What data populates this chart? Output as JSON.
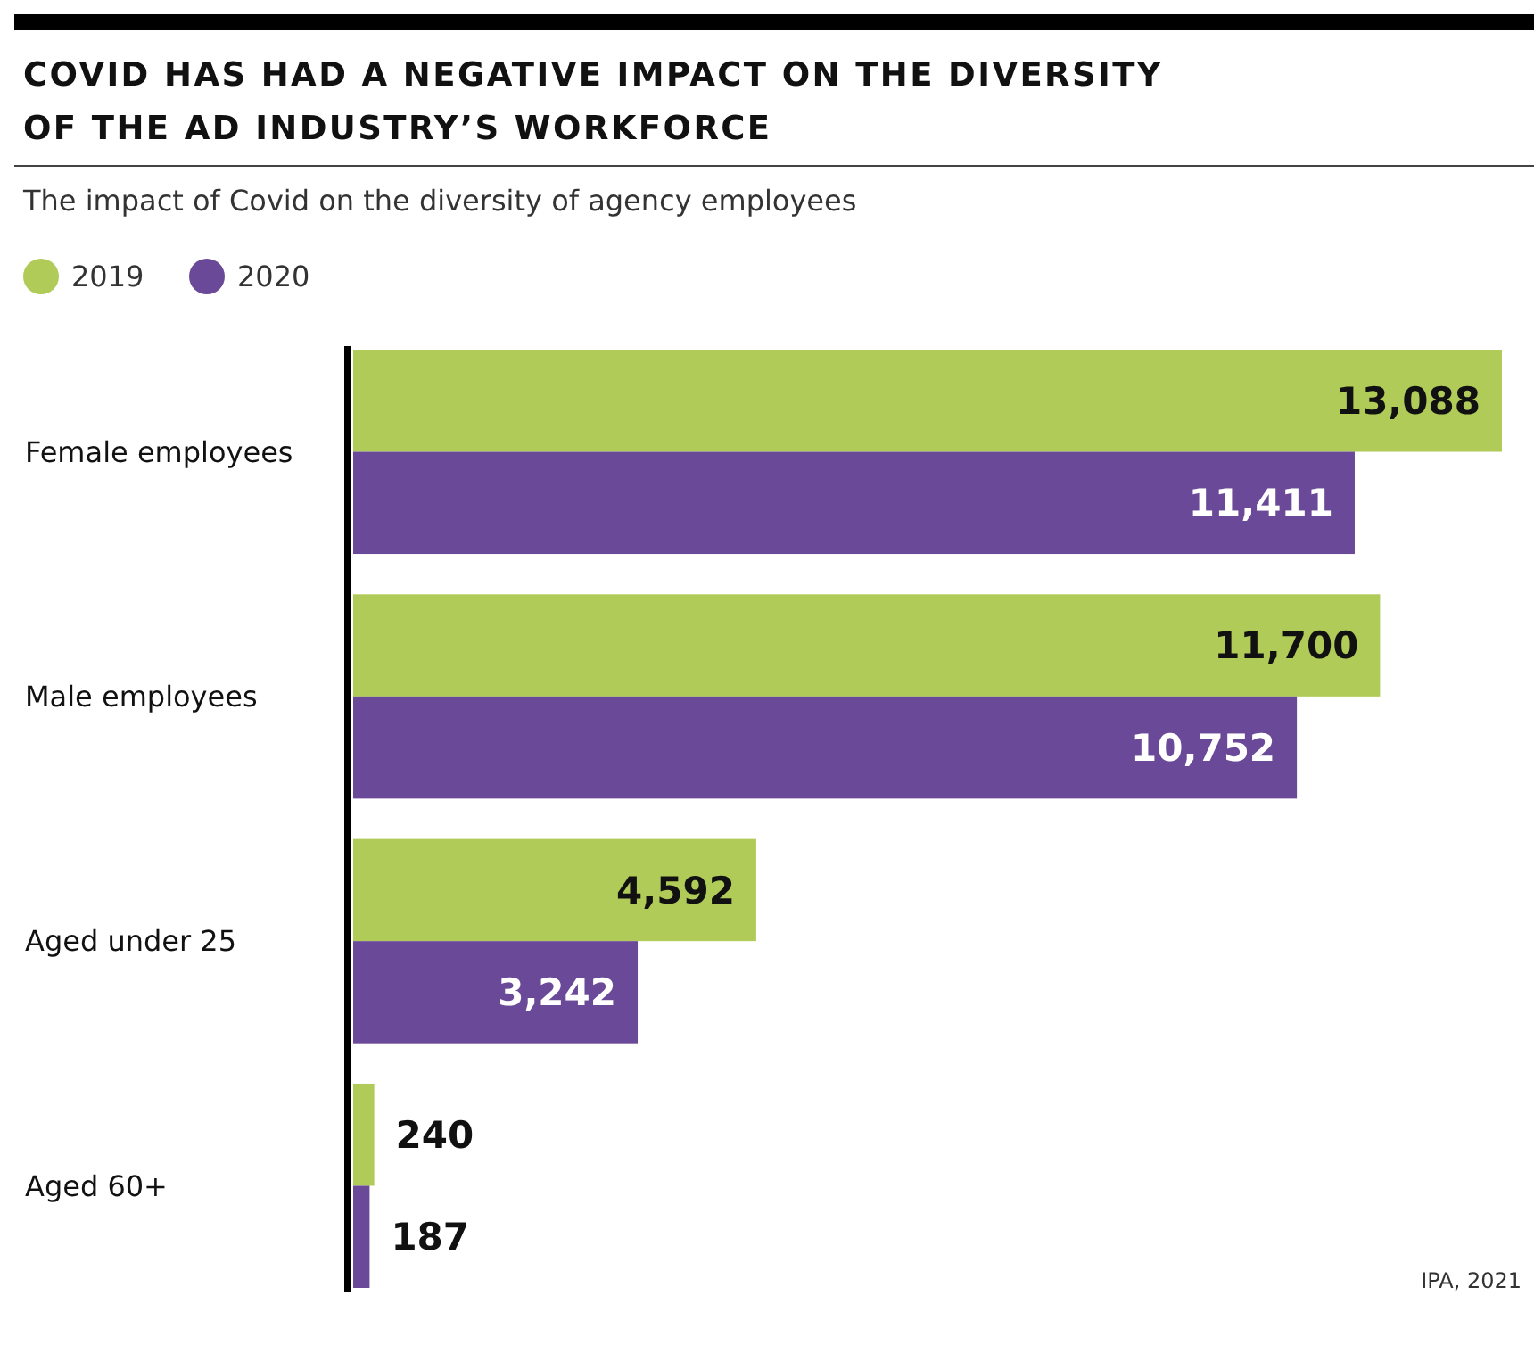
{
  "chart_data": {
    "type": "bar",
    "orientation": "horizontal",
    "title": "COVID HAS HAD A NEGATIVE IMPACT ON THE DIVERSITY OF THE AD INDUSTRY’S WORKFORCE",
    "subtitle": "The impact of Covid on the diversity of agency employees",
    "categories": [
      "Female employees",
      "Male employees",
      "Aged under 25",
      "Aged 60+"
    ],
    "series": [
      {
        "name": "2019",
        "color": "#b0cb57",
        "values": [
          13088,
          11700,
          4592,
          240
        ],
        "value_labels": [
          "13,088",
          "11,700",
          "4,592",
          "240"
        ]
      },
      {
        "name": "2020",
        "color": "#6a4a98",
        "values": [
          11411,
          10752,
          3242,
          187
        ],
        "value_labels": [
          "11,411",
          "10,752",
          "3,242",
          "187"
        ]
      }
    ],
    "legend": "top left",
    "annotations": [
      "IPA, 2021"
    ]
  }
}
